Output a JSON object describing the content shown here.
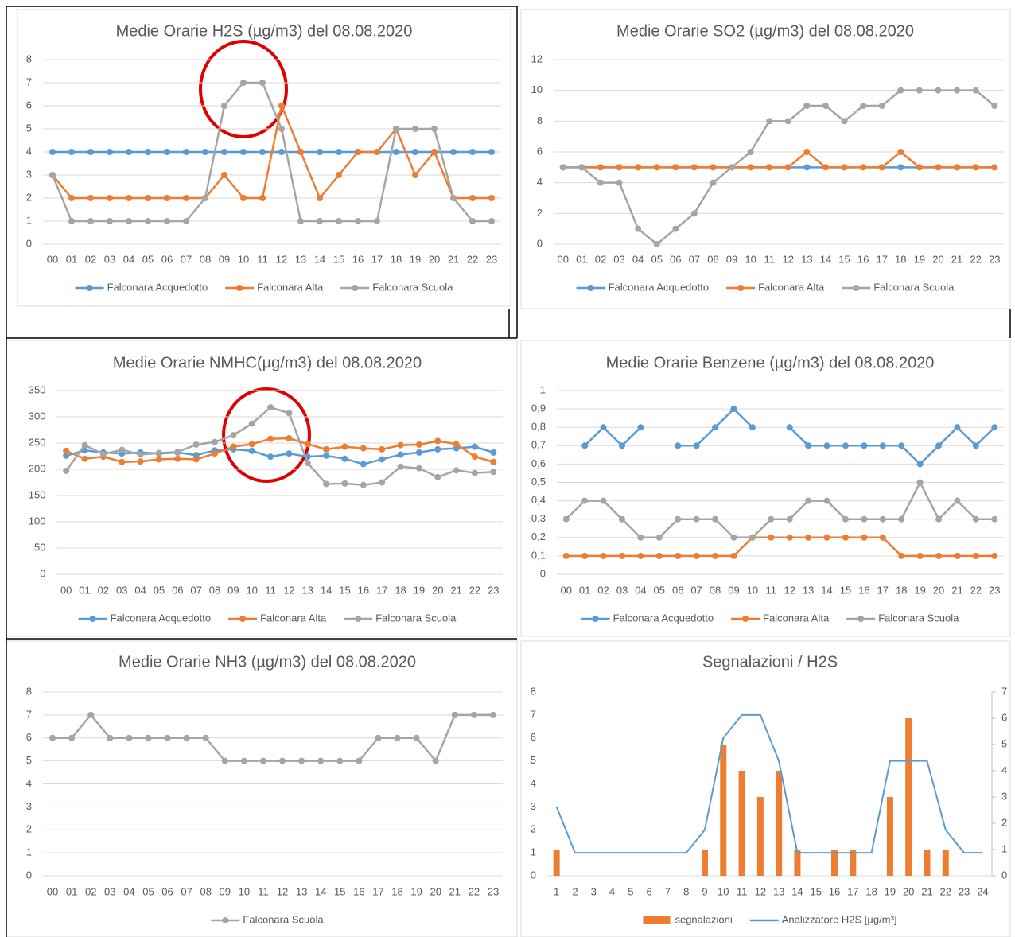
{
  "chart_data": [
    {
      "type": "line",
      "title": "Medie Orarie H2S (µg/m3) del 08.08.2020",
      "categories": [
        "00",
        "01",
        "02",
        "03",
        "04",
        "05",
        "06",
        "07",
        "08",
        "09",
        "10",
        "11",
        "12",
        "13",
        "14",
        "15",
        "16",
        "17",
        "18",
        "19",
        "20",
        "21",
        "22",
        "23"
      ],
      "series": [
        {
          "name": "Falconara Acquedotto",
          "color": "#5b9bd5",
          "values": [
            4,
            4,
            4,
            4,
            4,
            4,
            4,
            4,
            4,
            4,
            4,
            4,
            4,
            4,
            4,
            4,
            4,
            4,
            4,
            4,
            4,
            4,
            4,
            4
          ]
        },
        {
          "name": "Falconara Alta",
          "color": "#ed7d31",
          "values": [
            3,
            2,
            2,
            2,
            2,
            2,
            2,
            2,
            2,
            3,
            2,
            2,
            6,
            4,
            2,
            3,
            4,
            4,
            5,
            3,
            4,
            2,
            2,
            2
          ]
        },
        {
          "name": "Falconara Scuola",
          "color": "#a5a5a5",
          "values": [
            3,
            1,
            1,
            1,
            1,
            1,
            1,
            1,
            2,
            6,
            7,
            7,
            5,
            1,
            1,
            1,
            1,
            1,
            5,
            5,
            5,
            2,
            1,
            1
          ]
        }
      ],
      "ylim": [
        0,
        8
      ],
      "yticks": [
        0,
        1,
        2,
        3,
        4,
        5,
        6,
        7,
        8
      ],
      "grid": true
    },
    {
      "type": "line",
      "title": "Medie Orarie SO2 (µg/m3) del 08.08.2020",
      "categories": [
        "00",
        "01",
        "02",
        "03",
        "04",
        "05",
        "06",
        "07",
        "08",
        "09",
        "10",
        "11",
        "12",
        "13",
        "14",
        "15",
        "16",
        "17",
        "18",
        "19",
        "20",
        "21",
        "22",
        "23"
      ],
      "series": [
        {
          "name": "Falconara Acquedotto",
          "color": "#5b9bd5",
          "values": [
            5,
            5,
            5,
            5,
            5,
            5,
            5,
            5,
            5,
            5,
            5,
            5,
            5,
            5,
            5,
            5,
            5,
            5,
            5,
            5,
            5,
            5,
            5,
            5
          ]
        },
        {
          "name": "Falconara Alta",
          "color": "#ed7d31",
          "values": [
            5,
            5,
            5,
            5,
            5,
            5,
            5,
            5,
            5,
            5,
            5,
            5,
            5,
            6,
            5,
            5,
            5,
            5,
            6,
            5,
            5,
            5,
            5,
            5
          ]
        },
        {
          "name": "Falconara Scuola",
          "color": "#a5a5a5",
          "values": [
            5,
            5,
            4,
            4,
            1,
            0,
            1,
            2,
            4,
            5,
            6,
            8,
            8,
            9,
            9,
            8,
            9,
            9,
            10,
            10,
            10,
            10,
            10,
            9
          ]
        }
      ],
      "ylim": [
        0,
        12
      ],
      "yticks": [
        0,
        2,
        4,
        6,
        8,
        10,
        12
      ],
      "grid": true
    },
    {
      "type": "line",
      "title": "Medie Orarie NMHC(µg/m3) del 08.08.2020",
      "categories": [
        "00",
        "01",
        "02",
        "03",
        "04",
        "05",
        "06",
        "07",
        "08",
        "09",
        "10",
        "11",
        "12",
        "13",
        "14",
        "15",
        "16",
        "17",
        "18",
        "19",
        "20",
        "21",
        "22",
        "23"
      ],
      "series": [
        {
          "name": "Falconara Acquedotto",
          "color": "#5b9bd5",
          "values": [
            226,
            236,
            232,
            230,
            232,
            230,
            232,
            227,
            236,
            238,
            235,
            224,
            230,
            224,
            226,
            220,
            210,
            219,
            228,
            232,
            238,
            240,
            243,
            232
          ]
        },
        {
          "name": "Falconara Alta",
          "color": "#ed7d31",
          "values": [
            235,
            220,
            224,
            214,
            215,
            219,
            220,
            219,
            230,
            243,
            248,
            258,
            259,
            248,
            238,
            243,
            240,
            238,
            246,
            247,
            254,
            248,
            224,
            214
          ]
        },
        {
          "name": "Falconara Scuola",
          "color": "#a5a5a5",
          "values": [
            197,
            246,
            229,
            237,
            228,
            231,
            233,
            247,
            252,
            265,
            287,
            318,
            307,
            212,
            172,
            173,
            170,
            175,
            205,
            202,
            185,
            198,
            193,
            195
          ]
        }
      ],
      "ylim": [
        0,
        350
      ],
      "yticks": [
        0,
        50,
        100,
        150,
        200,
        250,
        300,
        350
      ],
      "grid": true
    },
    {
      "type": "line",
      "title": "Medie Orarie Benzene  (µg/m3) del 08.08.2020",
      "categories": [
        "00",
        "01",
        "02",
        "03",
        "04",
        "05",
        "06",
        "07",
        "08",
        "09",
        "10",
        "11",
        "12",
        "13",
        "14",
        "15",
        "16",
        "17",
        "18",
        "19",
        "20",
        "21",
        "22",
        "23"
      ],
      "series": [
        {
          "name": "Falconara Acquedotto",
          "color": "#5b9bd5",
          "values": [
            null,
            0.7,
            0.8,
            0.7,
            0.8,
            null,
            0.7,
            0.7,
            0.8,
            0.9,
            0.8,
            null,
            0.8,
            0.7,
            0.7,
            0.7,
            0.7,
            0.7,
            0.7,
            0.6,
            0.7,
            0.8,
            0.7,
            0.8
          ]
        },
        {
          "name": "Falconara Alta",
          "color": "#ed7d31",
          "values": [
            0.1,
            0.1,
            0.1,
            0.1,
            0.1,
            0.1,
            0.1,
            0.1,
            0.1,
            0.1,
            0.2,
            0.2,
            0.2,
            0.2,
            0.2,
            0.2,
            0.2,
            0.2,
            0.1,
            0.1,
            0.1,
            0.1,
            0.1,
            0.1
          ]
        },
        {
          "name": "Falconara Scuola",
          "color": "#a5a5a5",
          "values": [
            0.3,
            0.4,
            0.4,
            0.3,
            0.2,
            0.2,
            0.3,
            0.3,
            0.3,
            0.2,
            0.2,
            0.3,
            0.3,
            0.4,
            0.4,
            0.3,
            0.3,
            0.3,
            0.3,
            0.5,
            0.3,
            0.4,
            0.3,
            0.3
          ]
        }
      ],
      "ylim": [
        0,
        1
      ],
      "yticks": [
        0,
        {
          "value": 0.1,
          "label": "0,1"
        },
        {
          "value": 0.2,
          "label": "0,2"
        },
        {
          "value": 0.3,
          "label": "0,3"
        },
        {
          "value": 0.4,
          "label": "0,4"
        },
        {
          "value": 0.5,
          "label": "0,5"
        },
        {
          "value": 0.6,
          "label": "0,6"
        },
        {
          "value": 0.7,
          "label": "0,7"
        },
        {
          "value": 0.8,
          "label": "0,8"
        },
        {
          "value": 0.9,
          "label": "0,9"
        },
        1
      ],
      "grid": true
    },
    {
      "type": "line",
      "title": "Medie Orarie NH3 (µg/m3) del 08.08.2020",
      "categories": [
        "00",
        "01",
        "02",
        "03",
        "04",
        "05",
        "06",
        "07",
        "08",
        "09",
        "10",
        "11",
        "12",
        "13",
        "14",
        "15",
        "16",
        "17",
        "18",
        "19",
        "20",
        "21",
        "22",
        "23"
      ],
      "series": [
        {
          "name": "Falconara Scuola",
          "color": "#a5a5a5",
          "values": [
            6,
            6,
            7,
            6,
            6,
            6,
            6,
            6,
            6,
            5,
            5,
            5,
            5,
            5,
            5,
            5,
            5,
            6,
            6,
            6,
            5,
            7,
            7,
            7
          ]
        }
      ],
      "ylim": [
        0,
        8
      ],
      "yticks": [
        0,
        1,
        2,
        3,
        4,
        5,
        6,
        7,
        8
      ],
      "grid": true
    },
    {
      "type": "combo",
      "title": "Segnalazioni / H2S",
      "categories": [
        "1",
        "2",
        "3",
        "4",
        "5",
        "6",
        "7",
        "8",
        "9",
        "10",
        "11",
        "12",
        "13",
        "14",
        "15",
        "16",
        "17",
        "18",
        "19",
        "20",
        "21",
        "22",
        "23",
        "24"
      ],
      "series": [
        {
          "name": "segnalazioni",
          "type": "bar",
          "axis": "y2",
          "color": "#ed7d31",
          "values": [
            1,
            0,
            0,
            0,
            0,
            0,
            0,
            0,
            1,
            5,
            4,
            3,
            4,
            1,
            0,
            1,
            1,
            0,
            3,
            6,
            1,
            1,
            0,
            0
          ]
        },
        {
          "name": "Analizzatore H2S [µg/m³]",
          "type": "line",
          "color": "#5b9bd5",
          "values": [
            3,
            1,
            1,
            1,
            1,
            1,
            1,
            1,
            2,
            6,
            7,
            7,
            5,
            1,
            1,
            1,
            1,
            1,
            5,
            5,
            5,
            2,
            1,
            1
          ]
        }
      ],
      "ylim": [
        0,
        8
      ],
      "yticks": [
        0,
        1,
        2,
        3,
        4,
        5,
        6,
        7,
        8
      ],
      "y2lim": [
        0,
        7
      ],
      "y2ticks": [
        0,
        1,
        2,
        3,
        4,
        5,
        6,
        7
      ],
      "grid": false
    }
  ]
}
